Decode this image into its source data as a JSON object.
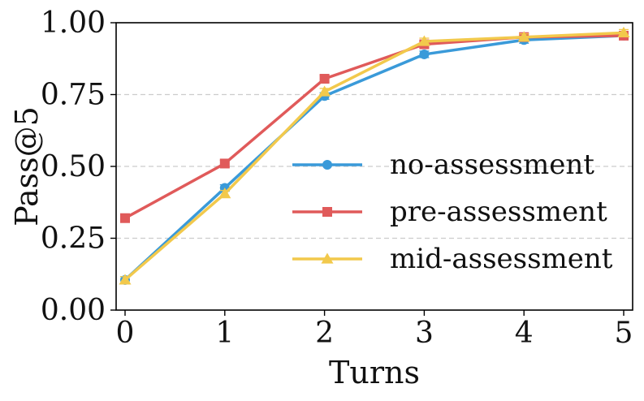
{
  "chart_data": {
    "type": "line",
    "title": "",
    "xlabel": "Turns",
    "ylabel": "Pass@5",
    "x": [
      0,
      1,
      2,
      3,
      4,
      5
    ],
    "xlim": [
      0,
      5
    ],
    "ylim": [
      0,
      1
    ],
    "xticks": [
      "0",
      "1",
      "2",
      "3",
      "4",
      "5"
    ],
    "yticks": [
      "0.00",
      "0.25",
      "0.50",
      "0.75",
      "1.00"
    ],
    "ytick_values": [
      0,
      0.25,
      0.5,
      0.75,
      1
    ],
    "grid": "horizontal dashed",
    "legend_position": "center-right",
    "series": [
      {
        "name": "no-assessment",
        "color": "#3a9ad9",
        "marker": "circle",
        "values": [
          0.105,
          0.425,
          0.745,
          0.89,
          0.94,
          0.955
        ]
      },
      {
        "name": "pre-assessment",
        "color": "#e05a5a",
        "marker": "square",
        "values": [
          0.32,
          0.51,
          0.805,
          0.925,
          0.95,
          0.955
        ]
      },
      {
        "name": "mid-assessment",
        "color": "#f2c94c",
        "marker": "triangle",
        "values": [
          0.105,
          0.405,
          0.76,
          0.935,
          0.95,
          0.965
        ]
      }
    ]
  }
}
